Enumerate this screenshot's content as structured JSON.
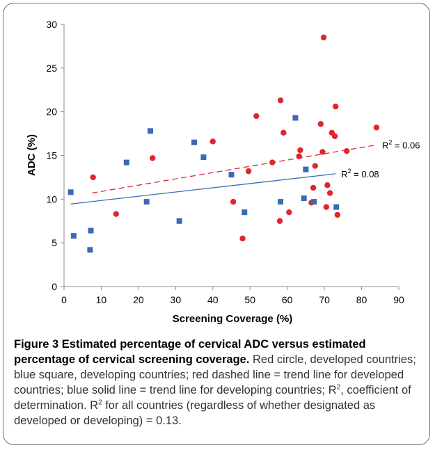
{
  "chart_data": {
    "type": "scatter",
    "xlabel": "Screening Coverage (%)",
    "ylabel": "ADC (%)",
    "xlim": [
      0,
      90
    ],
    "ylim": [
      0,
      30
    ],
    "xticks": [
      "0",
      "10",
      "20",
      "30",
      "40",
      "50",
      "60",
      "70",
      "80",
      "90"
    ],
    "yticks": [
      "0",
      "5",
      "10",
      "15",
      "20",
      "25",
      "30"
    ],
    "grid": false,
    "series": [
      {
        "marker": "circle",
        "color": "#e0262b",
        "points": [
          [
            7.8,
            12.5
          ],
          [
            14,
            8.3
          ],
          [
            23.8,
            14.7
          ],
          [
            40,
            16.6
          ],
          [
            45.5,
            9.7
          ],
          [
            48,
            5.5
          ],
          [
            49.6,
            13.2
          ],
          [
            51.7,
            19.5
          ],
          [
            56,
            14.2
          ],
          [
            58,
            7.5
          ],
          [
            58.2,
            21.3
          ],
          [
            59,
            17.6
          ],
          [
            60.5,
            8.5
          ],
          [
            63.2,
            14.9
          ],
          [
            63.5,
            15.6
          ],
          [
            66.5,
            9.6
          ],
          [
            67,
            11.3
          ],
          [
            67.5,
            13.8
          ],
          [
            69,
            18.6
          ],
          [
            69.5,
            15.4
          ],
          [
            69.8,
            28.5
          ],
          [
            70.5,
            9.1
          ],
          [
            70.8,
            11.6
          ],
          [
            71.5,
            10.7
          ],
          [
            72,
            17.6
          ],
          [
            72.8,
            17.2
          ],
          [
            73,
            20.6
          ],
          [
            73.5,
            8.2
          ],
          [
            76,
            15.5
          ],
          [
            84,
            18.2
          ]
        ],
        "trend": {
          "from": [
            7.5,
            10.7
          ],
          "to": [
            84,
            16.2
          ],
          "style": "dashed",
          "label": "R",
          "sup": "2",
          "value": " = 0.06"
        }
      },
      {
        "marker": "square",
        "color": "#3a6ab5",
        "points": [
          [
            1.8,
            10.8
          ],
          [
            2.6,
            5.8
          ],
          [
            7,
            4.2
          ],
          [
            7.2,
            6.4
          ],
          [
            16.8,
            14.2
          ],
          [
            22.2,
            9.7
          ],
          [
            23.2,
            17.8
          ],
          [
            31,
            7.5
          ],
          [
            35,
            16.5
          ],
          [
            37.5,
            14.8
          ],
          [
            45,
            12.8
          ],
          [
            48.5,
            8.5
          ],
          [
            58.2,
            9.7
          ],
          [
            62.2,
            19.3
          ],
          [
            64.5,
            10.1
          ],
          [
            65,
            13.4
          ],
          [
            67.2,
            9.7
          ],
          [
            73.2,
            9.1
          ]
        ],
        "trend": {
          "from": [
            1.8,
            9.45
          ],
          "to": [
            73,
            12.9
          ],
          "style": "solid",
          "label": "R",
          "sup": "2",
          "value": " = 0.08"
        }
      }
    ]
  },
  "caption": {
    "title": "Figure 3 Estimated percentage of cervical ADC versus estimated percentage of cervical screening coverage.",
    "body_1": " Red circle, developed countries; blue square, developing countries; red dashed line = trend line for developed countries; blue solid line = trend line for developing countries; R",
    "sup_1": "2",
    "body_2": ", coefficient of determination. R",
    "sup_2": "2",
    "body_3": " for all countries (regardless of whether designated as developed or developing) = 0.13."
  }
}
